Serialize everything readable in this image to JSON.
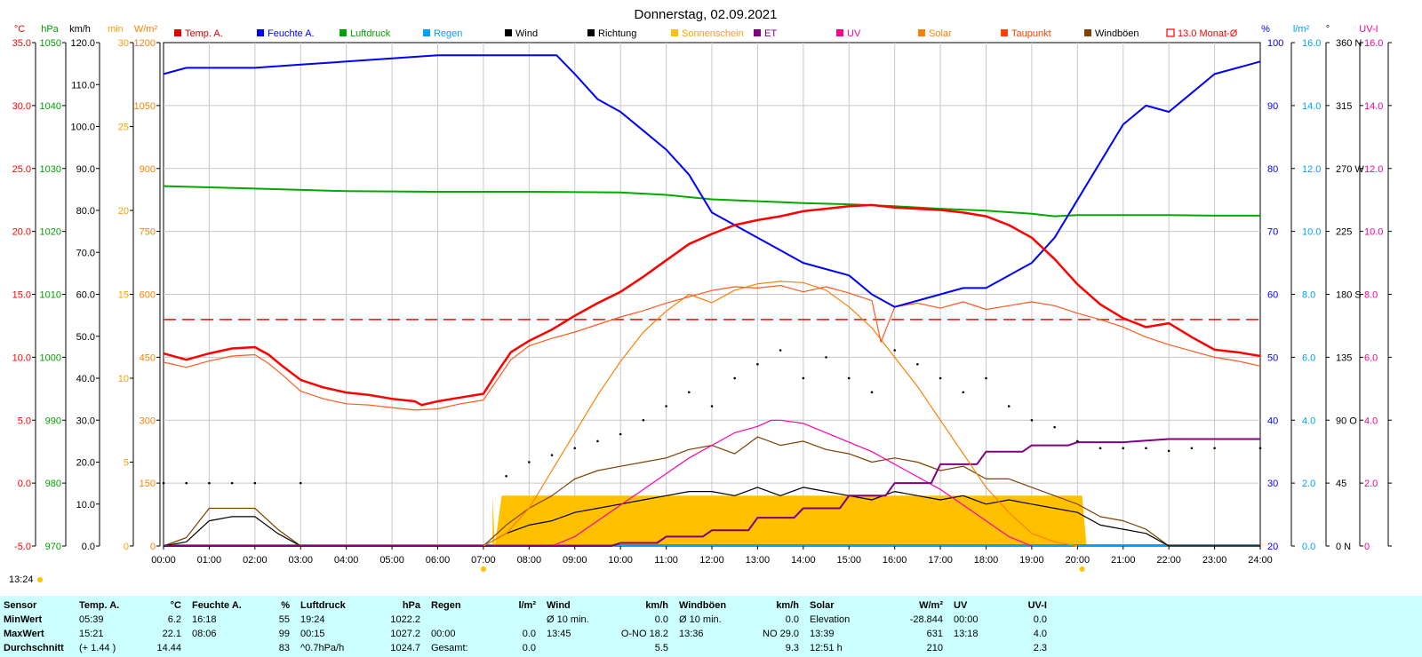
{
  "title": "Donnerstag, 02.09.2021",
  "colors": {
    "temp": "#ff0000",
    "humidity": "#0000ff",
    "pressure": "#00aa00",
    "rain": "#00a0ff",
    "wind": "#000000",
    "sunshine": "#ffc000",
    "et": "#800080",
    "uv": "#ff00aa",
    "solar": "#ff8000",
    "dewpoint": "#ff4000",
    "gust": "#804000",
    "stats_bg": "#ccffff"
  },
  "legend": [
    {
      "label": "Temp. A.",
      "color": "#e00000",
      "text_color": "#e00000",
      "icon": "filled-square"
    },
    {
      "label": "Feuchte A.",
      "color": "#0000ff",
      "text_color": "#0000ff",
      "icon": "filled-square"
    },
    {
      "label": "Luftdruck",
      "color": "#00a000",
      "text_color": "#00a000",
      "icon": "filled-square"
    },
    {
      "label": "Regen",
      "color": "#00a0ff",
      "text_color": "#00a0ff",
      "icon": "filled-square"
    },
    {
      "label": "Wind",
      "color": "#000000",
      "text_color": "#000000",
      "icon": "filled-square"
    },
    {
      "label": "Richtung",
      "color": "#000000",
      "text_color": "#000000",
      "icon": "filled-square"
    },
    {
      "label": "Sonnenschein",
      "color": "#ffc000",
      "text_color": "#ffa000",
      "icon": "filled-square"
    },
    {
      "label": "ET",
      "color": "#800080",
      "text_color": "#800080",
      "icon": "filled-square"
    },
    {
      "label": "UV",
      "color": "#ff0090",
      "text_color": "#ff0090",
      "icon": "filled-square"
    },
    {
      "label": "Solar",
      "color": "#ff8000",
      "text_color": "#ff8000",
      "icon": "filled-square"
    },
    {
      "label": "Taupunkt",
      "color": "#ff4000",
      "text_color": "#ff4000",
      "icon": "filled-square"
    },
    {
      "label": "Windböen",
      "color": "#804000",
      "text_color": "#000000",
      "icon": "filled-square"
    },
    {
      "label": "13.0 Monat-Ø",
      "color": "#ff0000",
      "text_color": "#ff0000",
      "icon": "hollow-square"
    }
  ],
  "axes_left": [
    {
      "unit": "°C",
      "color": "#ff0000",
      "ticks": [
        "35.0",
        "30.0",
        "25.0",
        "20.0",
        "15.0",
        "10.0",
        "5.0",
        "0.0",
        "-5.0"
      ]
    },
    {
      "unit": "hPa",
      "color": "#00a000",
      "ticks": [
        "1050",
        "1040",
        "1030",
        "1020",
        "1010",
        "1000",
        "990",
        "980",
        "970"
      ]
    },
    {
      "unit": "km/h",
      "color": "#000000",
      "ticks": [
        "120.0",
        "110.0",
        "100.0",
        "90.0",
        "80.0",
        "70.0",
        "60.0",
        "50.0",
        "40.0",
        "30.0",
        "20.0",
        "10.0",
        "0.0"
      ]
    },
    {
      "unit": "min",
      "color": "#ffa000",
      "ticks": [
        "30",
        "25",
        "20",
        "15",
        "10",
        "5",
        "0"
      ]
    },
    {
      "unit": "W/m²",
      "color": "#ff8000",
      "ticks": [
        "1200",
        "1050",
        "900",
        "750",
        "600",
        "450",
        "300",
        "150",
        "0"
      ]
    }
  ],
  "axes_right": [
    {
      "unit": "%",
      "color": "#0000ff",
      "ticks": [
        "100",
        "90",
        "80",
        "70",
        "60",
        "50",
        "40",
        "30",
        "20"
      ]
    },
    {
      "unit": "l/m²",
      "color": "#00a0ff",
      "ticks": [
        "16.0",
        "14.0",
        "12.0",
        "10.0",
        "8.0",
        "6.0",
        "4.0",
        "2.0",
        "0.0"
      ]
    },
    {
      "unit": "°",
      "color": "#000000",
      "ticks": [
        "360 N",
        "315",
        "270 W",
        "225",
        "180 S",
        "135",
        "90 O",
        "45",
        "0 N"
      ]
    },
    {
      "unit": "UV-I",
      "color": "#ff0090",
      "ticks": [
        "16.0",
        "14.0",
        "12.0",
        "10.0",
        "8.0",
        "6.0",
        "4.0",
        "2.0",
        "0"
      ]
    }
  ],
  "time_ticks": [
    "00:00",
    "01:00",
    "02:00",
    "03:00",
    "04:00",
    "05:00",
    "06:00",
    "07:00",
    "08:00",
    "09:00",
    "10:00",
    "11:00",
    "12:00",
    "13:00",
    "14:00",
    "15:00",
    "16:00",
    "17:00",
    "18:00",
    "19:00",
    "20:00",
    "21:00",
    "22:00",
    "23:00",
    "24:00"
  ],
  "current_time": "13:24",
  "chart_data": {
    "type": "line",
    "title": "Donnerstag, 02.09.2021",
    "x_unit": "hour of day",
    "xlim": [
      0,
      24
    ],
    "month_average_temp": 13.0,
    "series": [
      {
        "name": "Temp. A.",
        "unit": "°C",
        "axis": "°C",
        "ylim": [
          -5,
          35
        ],
        "x": [
          0,
          0.5,
          1,
          1.5,
          2,
          2.3,
          2.6,
          3,
          3.5,
          4,
          4.5,
          5,
          5.5,
          5.65,
          6,
          6.5,
          7,
          7.3,
          7.6,
          8,
          8.5,
          9,
          9.5,
          10,
          10.5,
          11,
          11.5,
          12,
          12.5,
          13,
          13.5,
          14,
          14.5,
          15,
          15.5,
          16,
          16.5,
          17,
          17.5,
          18,
          18.5,
          19,
          19.5,
          20,
          20.5,
          21,
          21.5,
          22,
          22.5,
          23,
          23.5,
          24
        ],
        "y": [
          10.3,
          9.8,
          10.3,
          10.7,
          10.8,
          10.2,
          9.3,
          8.2,
          7.6,
          7.2,
          7.0,
          6.7,
          6.5,
          6.2,
          6.5,
          6.8,
          7.1,
          8.8,
          10.4,
          11.3,
          12.2,
          13.3,
          14.3,
          15.2,
          16.4,
          17.7,
          19.0,
          19.8,
          20.5,
          20.9,
          21.2,
          21.6,
          21.8,
          22.0,
          22.1,
          21.9,
          21.8,
          21.7,
          21.5,
          21.2,
          20.5,
          19.5,
          17.8,
          15.8,
          14.2,
          13.1,
          12.4,
          12.7,
          11.6,
          10.6,
          10.4,
          10.1
        ]
      },
      {
        "name": "Taupunkt",
        "unit": "°C",
        "axis": "°C",
        "ylim": [
          -5,
          35
        ],
        "x": [
          0,
          0.5,
          1,
          1.5,
          2,
          2.3,
          2.6,
          3,
          3.5,
          4,
          4.5,
          5,
          5.5,
          6,
          6.5,
          7,
          7.3,
          7.6,
          8,
          8.5,
          9,
          9.5,
          10,
          10.5,
          11,
          11.5,
          12,
          12.5,
          13,
          13.5,
          14,
          14.5,
          15,
          15.5,
          15.7,
          16,
          16.5,
          17,
          17.5,
          18,
          18.5,
          19,
          19.5,
          20,
          20.5,
          21,
          21.5,
          22,
          22.5,
          23,
          23.5,
          24
        ],
        "y": [
          9.6,
          9.2,
          9.7,
          10.1,
          10.2,
          9.5,
          8.6,
          7.3,
          6.7,
          6.3,
          6.2,
          6.0,
          5.8,
          5.9,
          6.3,
          6.6,
          8.2,
          9.8,
          10.9,
          11.5,
          12.0,
          12.6,
          13.2,
          13.7,
          14.3,
          14.8,
          15.3,
          15.6,
          15.5,
          15.7,
          15.2,
          15.6,
          15.1,
          14.5,
          11.2,
          14.0,
          14.3,
          13.9,
          14.4,
          13.8,
          14.1,
          14.4,
          14.1,
          13.5,
          13.0,
          12.4,
          11.6,
          11.0,
          10.5,
          10.0,
          9.7,
          9.3
        ]
      },
      {
        "name": "Feuchte A.",
        "unit": "%",
        "axis": "%",
        "ylim": [
          20,
          100
        ],
        "x": [
          0,
          0.5,
          1,
          2,
          3,
          4,
          5,
          6,
          7,
          8,
          8.6,
          9,
          9.5,
          10,
          10.5,
          11,
          11.5,
          12,
          12.5,
          13,
          13.5,
          14,
          14.5,
          15,
          15.5,
          16,
          16.5,
          17,
          17.5,
          18,
          18.5,
          19,
          19.5,
          20,
          20.5,
          21,
          21.5,
          22,
          22.5,
          23,
          23.5,
          24
        ],
        "y": [
          95,
          96,
          96,
          96,
          96.5,
          97,
          97.5,
          98,
          98,
          98,
          98,
          95,
          91,
          89,
          86,
          83,
          79,
          73,
          71,
          69,
          67,
          65,
          64,
          63,
          60,
          58,
          59,
          60,
          61,
          61,
          63,
          65,
          69,
          75,
          81,
          87,
          90,
          89,
          92,
          95,
          96,
          97
        ]
      },
      {
        "name": "Luftdruck",
        "unit": "hPa",
        "axis": "hPa",
        "ylim": [
          970,
          1050
        ],
        "x": [
          0,
          2,
          4,
          6,
          8,
          10,
          11,
          12,
          13,
          14,
          15,
          16,
          17,
          18,
          19,
          19.5,
          20,
          21,
          22,
          23,
          24
        ],
        "y": [
          1027.2,
          1026.8,
          1026.4,
          1026.3,
          1026.3,
          1026.2,
          1025.8,
          1025.1,
          1024.8,
          1024.5,
          1024.3,
          1024.0,
          1023.6,
          1023.3,
          1022.8,
          1022.4,
          1022.6,
          1022.6,
          1022.6,
          1022.5,
          1022.5
        ]
      },
      {
        "name": "Solar",
        "unit": "W/m²",
        "axis": "W/m²",
        "ylim": [
          0,
          1200
        ],
        "x": [
          7,
          7.5,
          8,
          8.5,
          9,
          9.5,
          10,
          10.5,
          11,
          11.5,
          12,
          12.5,
          13,
          13.5,
          14,
          14.5,
          15,
          15.5,
          16,
          16.5,
          17,
          17.5,
          18,
          18.5,
          19,
          19.5,
          20
        ],
        "y": [
          0,
          30,
          90,
          180,
          270,
          360,
          440,
          510,
          560,
          600,
          580,
          610,
          625,
          631,
          628,
          610,
          570,
          520,
          450,
          380,
          300,
          220,
          140,
          80,
          30,
          10,
          0
        ]
      },
      {
        "name": "UV",
        "unit": "UV-I",
        "axis": "UV-I",
        "ylim": [
          0,
          16
        ],
        "x": [
          8.5,
          9,
          9.5,
          10,
          10.5,
          11,
          11.5,
          12,
          12.5,
          13,
          13.3,
          13.5,
          14,
          14.5,
          15,
          15.5,
          16,
          16.5,
          17,
          17.5,
          18,
          18.5,
          19
        ],
        "y": [
          0,
          0.3,
          0.8,
          1.3,
          1.8,
          2.3,
          2.8,
          3.2,
          3.6,
          3.8,
          4.0,
          4.0,
          3.9,
          3.6,
          3.3,
          3.0,
          2.6,
          2.2,
          1.8,
          1.3,
          0.8,
          0.3,
          0
        ]
      },
      {
        "name": "Wind",
        "unit": "km/h",
        "axis": "km/h",
        "ylim": [
          0,
          120
        ],
        "x": [
          0,
          0.5,
          1,
          1.5,
          2,
          2.5,
          3,
          3.5,
          7,
          7.5,
          8,
          8.5,
          9,
          9.5,
          10,
          10.5,
          11,
          11.5,
          12,
          12.5,
          13,
          13.5,
          14,
          14.5,
          15,
          15.5,
          16,
          16.5,
          17,
          17.5,
          18,
          18.5,
          19,
          19.5,
          20,
          20.5,
          21,
          21.5,
          22,
          23,
          24
        ],
        "y": [
          0,
          1,
          6,
          7,
          7,
          3,
          0,
          0,
          0,
          3,
          5,
          6,
          8,
          9,
          10,
          11,
          12,
          13,
          13,
          12,
          14,
          12,
          14,
          13,
          12,
          11,
          13,
          12,
          11,
          12,
          10,
          11,
          10,
          9,
          8,
          5,
          4,
          3,
          0,
          0,
          0
        ]
      },
      {
        "name": "Windböen",
        "unit": "km/h",
        "axis": "km/h",
        "ylim": [
          0,
          120
        ],
        "x": [
          0,
          0.5,
          1,
          1.5,
          2,
          2.5,
          3,
          3.5,
          7,
          7.5,
          8,
          8.5,
          9,
          9.5,
          10,
          10.5,
          11,
          11.5,
          12,
          12.5,
          13,
          13.5,
          14,
          14.5,
          15,
          15.5,
          16,
          16.5,
          17,
          17.5,
          18,
          18.5,
          19,
          19.5,
          20,
          20.5,
          21,
          21.5,
          22,
          23,
          24
        ],
        "y": [
          0,
          2,
          9,
          9,
          9,
          4,
          0,
          0,
          0,
          5,
          9,
          12,
          16,
          18,
          19,
          20,
          21,
          23,
          24,
          22,
          26,
          24,
          25,
          23,
          22,
          20,
          21,
          20,
          18,
          19,
          16,
          16,
          14,
          12,
          10,
          7,
          6,
          4,
          0,
          0,
          0
        ]
      },
      {
        "name": "ET",
        "unit": "l/m²",
        "axis": "l/m²",
        "ylim": [
          0,
          16
        ],
        "x": [
          0,
          9.8,
          10,
          10.8,
          11,
          11.8,
          12,
          12.8,
          13,
          13.8,
          14,
          14.8,
          15,
          15.8,
          16,
          16.8,
          17,
          17.8,
          18,
          18.8,
          19,
          19.8,
          20,
          21,
          22,
          23,
          24
        ],
        "y": [
          0,
          0,
          0.1,
          0.1,
          0.3,
          0.3,
          0.5,
          0.5,
          0.9,
          0.9,
          1.2,
          1.2,
          1.6,
          1.6,
          2.0,
          2.0,
          2.6,
          2.6,
          3.0,
          3.0,
          3.2,
          3.2,
          3.3,
          3.3,
          3.4,
          3.4,
          3.4
        ]
      },
      {
        "name": "Richtung",
        "unit": "°",
        "axis": "°",
        "ylim": [
          0,
          360
        ],
        "x": [
          0,
          0.5,
          1,
          1.5,
          2,
          3,
          7.5,
          8,
          8.5,
          9,
          9.5,
          10,
          10.5,
          11,
          11.5,
          12,
          12.5,
          13,
          13.5,
          14,
          14.5,
          15,
          15.5,
          16,
          16.5,
          17,
          17.5,
          18,
          18.5,
          19,
          19.5,
          20,
          20.5,
          21,
          21.5,
          22,
          22.5,
          23,
          24
        ],
        "y": [
          45,
          45,
          45,
          45,
          45,
          45,
          50,
          60,
          65,
          70,
          75,
          80,
          90,
          100,
          110,
          100,
          120,
          130,
          140,
          120,
          135,
          120,
          110,
          140,
          130,
          120,
          110,
          120,
          100,
          90,
          85,
          75,
          70,
          70,
          70,
          68,
          70,
          70,
          70
        ]
      },
      {
        "name": "Sonnenschein",
        "unit": "min",
        "axis": "min",
        "ylim": [
          0,
          30
        ],
        "x": [
          7.2,
          7.25,
          7.4,
          20.1,
          20.2
        ],
        "y": [
          3,
          0,
          3,
          3,
          0
        ]
      }
    ]
  },
  "stats": {
    "header": [
      "Sensor",
      "Temp. A.",
      "°C",
      "Feuchte A.",
      "%",
      "Luftdruck",
      "hPa",
      "Regen",
      "l/m²",
      "Wind",
      "km/h",
      "Windböen",
      "km/h",
      "Solar",
      "W/m²",
      "UV",
      "UV-I"
    ],
    "rows": [
      [
        "MinWert",
        "05:39",
        "6.2",
        "16:18",
        "55",
        "19:24",
        "1022.2",
        "",
        "",
        "Ø 10 min.",
        "0.0",
        "Ø 10 min.",
        "0.0",
        "Elevation",
        "-28.844",
        "00:00",
        "0.0"
      ],
      [
        "MaxWert",
        "15:21",
        "22.1",
        "08:06",
        "99",
        "00:15",
        "1027.2",
        "00:00",
        "0.0",
        "13:45",
        "O-NO 18.2",
        "13:36",
        "NO 29.0",
        "13:39",
        "631",
        "13:18",
        "4.0"
      ],
      [
        "Durchschnitt",
        "(+ 1.44 )",
        "14.44",
        "",
        "83",
        "^0.7hPa/h",
        "1024.7",
        "Gesamt:",
        "0.0",
        "",
        "5.5",
        "",
        "9.3",
        "12:51 h",
        "210",
        "",
        "2.3"
      ]
    ]
  }
}
